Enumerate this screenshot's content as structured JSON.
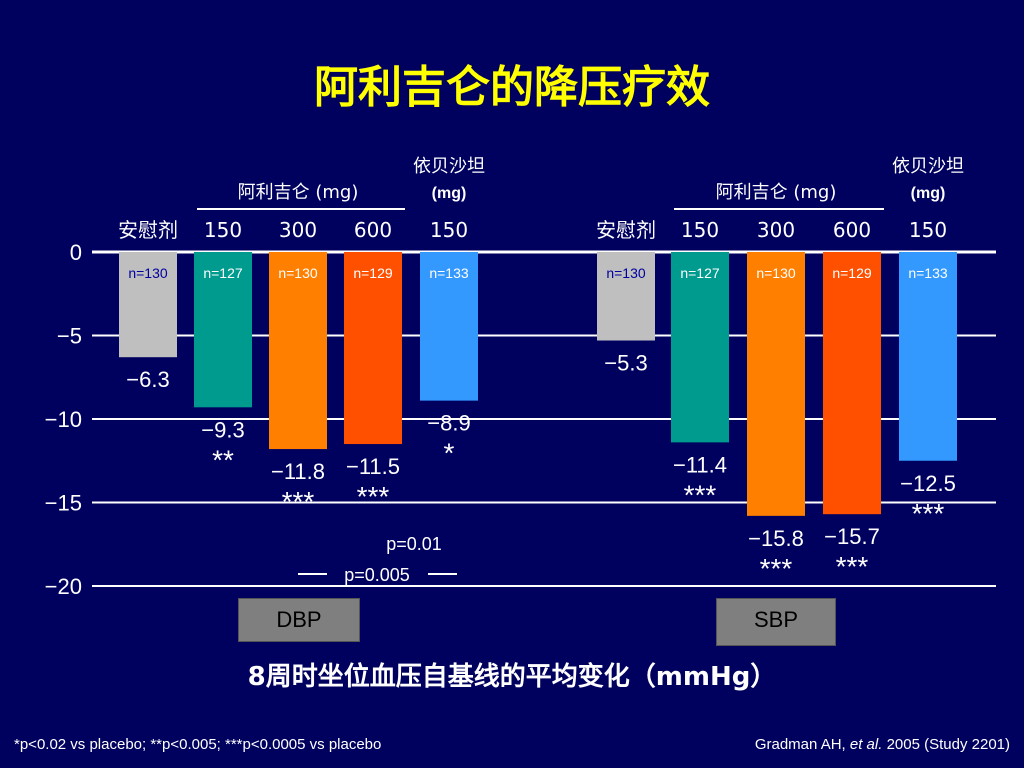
{
  "title": "阿利吉仑的降压疗效",
  "caption": "8周时坐位血压自基线的平均变化（mmHg）",
  "footnote": "*p<0.02 vs placebo; **p<0.005; ***p<0.0005 vs placebo",
  "citation": {
    "author": "Gradman AH, ",
    "etal": "et al.",
    "rest": " 2005 (Study 2201)"
  },
  "colors": {
    "background": "#00005e",
    "title": "#ffff00",
    "placebo": "#bfbfbf",
    "aliskiren_150": "#009b8f",
    "aliskiren_300": "#ff7f00",
    "aliskiren_600": "#ff5000",
    "irbesartan_150": "#3399ff",
    "n_label_gray": "#0000a0",
    "n_label_color": "#ffffff"
  },
  "group_headers": {
    "aliskiren": "阿利吉仑 (mg)",
    "irbesartan_line1": "依贝沙坦",
    "irbesartan_line2": "(mg)"
  },
  "chart_data": {
    "type": "bar",
    "ylim": [
      -20,
      0
    ],
    "yticks": [
      0,
      -5,
      -10,
      -15,
      -20
    ],
    "ytick_labels": [
      "0",
      "−5",
      "−10",
      "−15",
      "−20"
    ],
    "grid": true,
    "categories": [
      "安慰剂",
      "150",
      "300",
      "600",
      "150"
    ],
    "panels": [
      {
        "name": "DBP",
        "values": [
          -6.3,
          -9.3,
          -11.8,
          -11.5,
          -8.9
        ],
        "value_labels": [
          "−6.3",
          "−9.3",
          "−11.8",
          "−11.5",
          "−8.9"
        ],
        "n_labels": [
          "n=130",
          "n=127",
          "n=130",
          "n=129",
          "n=133"
        ],
        "significance": [
          "",
          "**",
          "***",
          "***",
          "*"
        ],
        "comparisons": [
          "p=0.01",
          "p=0.005"
        ]
      },
      {
        "name": "SBP",
        "values": [
          -5.3,
          -11.4,
          -15.8,
          -15.7,
          -12.5
        ],
        "value_labels": [
          "−5.3",
          "−11.4",
          "−15.8",
          "−15.7",
          "−12.5"
        ],
        "n_labels": [
          "n=130",
          "n=127",
          "n=130",
          "n=129",
          "n=133"
        ],
        "significance": [
          "",
          "***",
          "***",
          "***",
          "***"
        ],
        "comparisons": []
      }
    ]
  }
}
